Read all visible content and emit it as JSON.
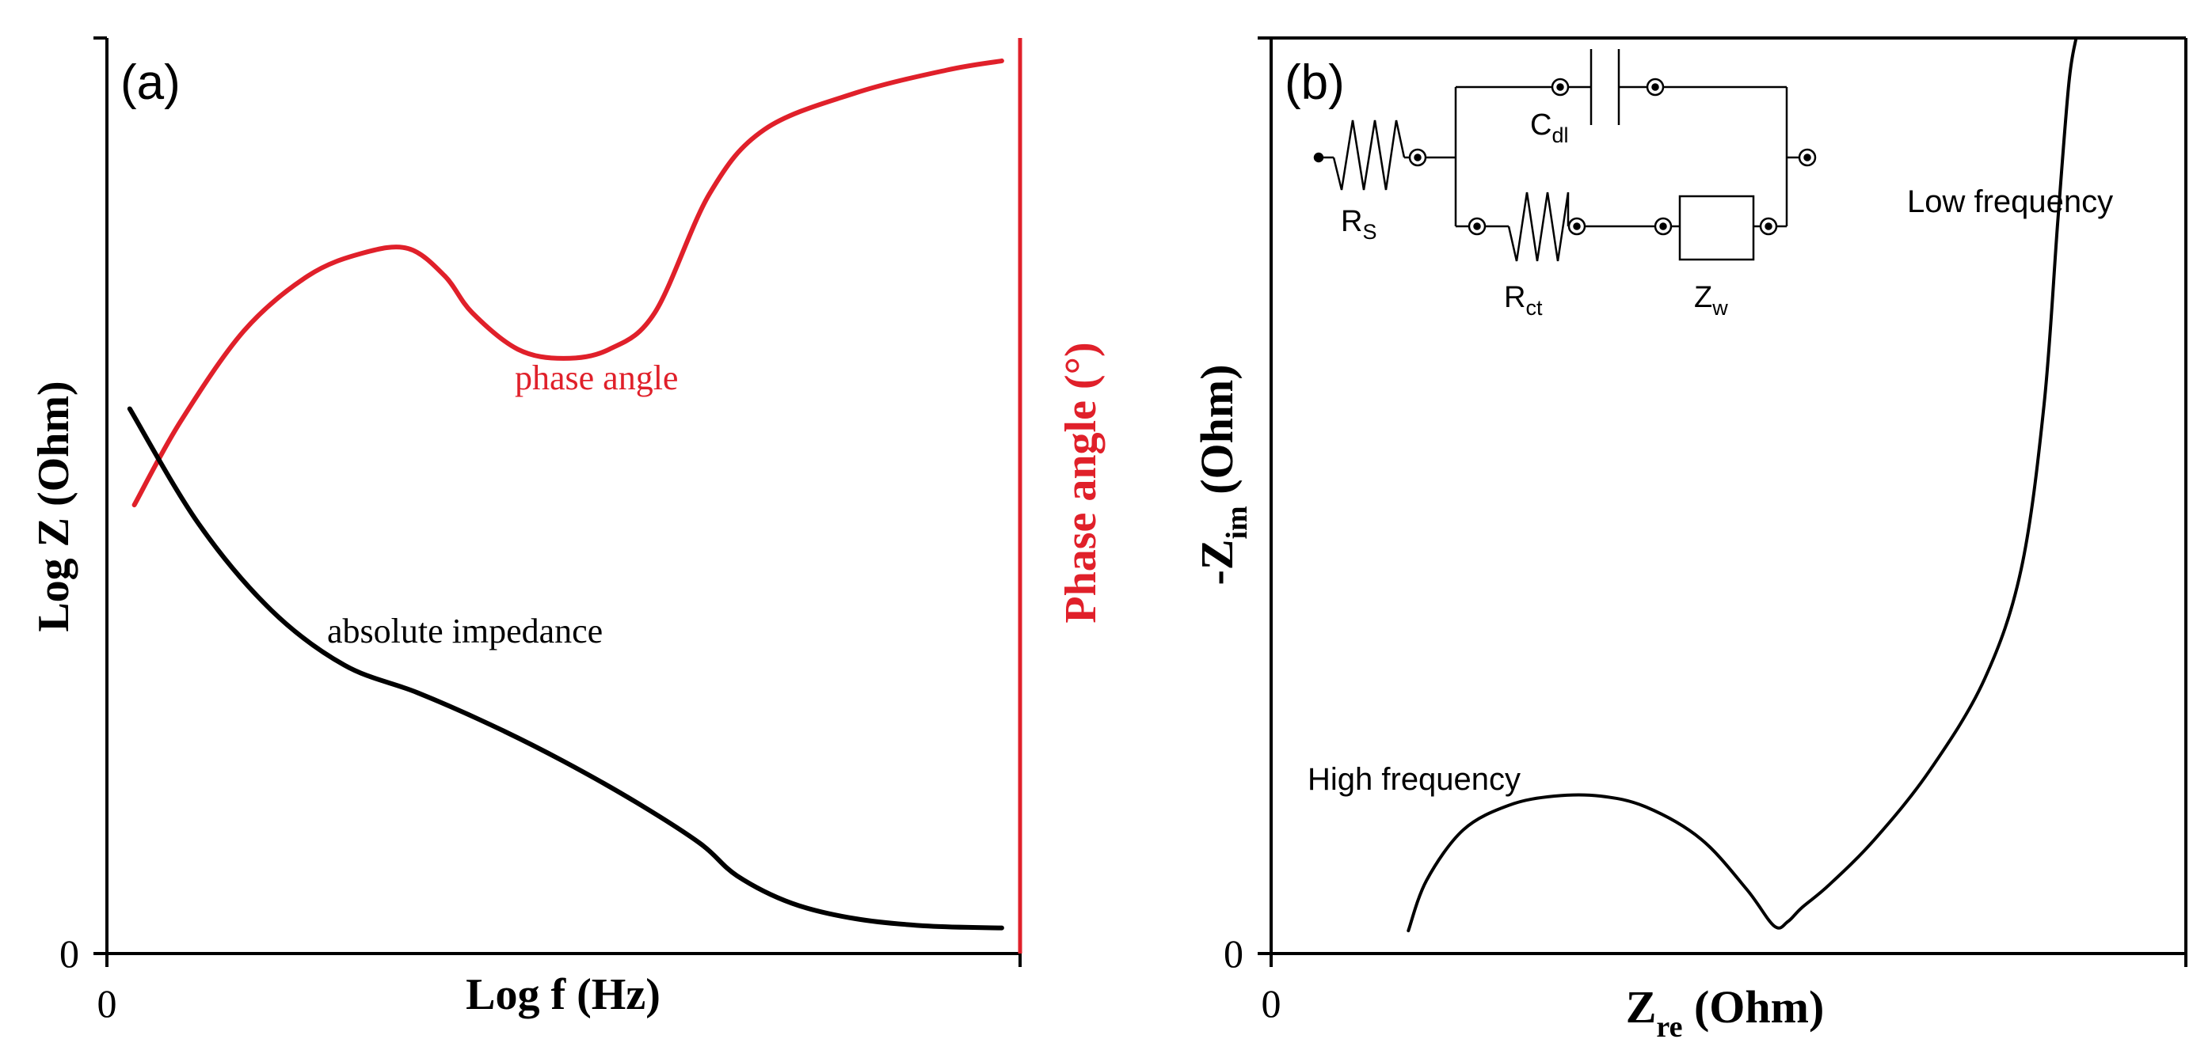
{
  "colors": {
    "axis": "#000000",
    "phase": "#e0202a",
    "impedance": "#000000",
    "background": "#ffffff"
  },
  "chart_data": [
    {
      "id": "bode",
      "panel_label": "(a)",
      "type": "line",
      "xlabel": "Log f (Hz)",
      "ylabel_left": "Log Z (Ohm)",
      "ylabel_right": "Phase angle (°)",
      "x_tick_label": "0",
      "y_tick_label": "0",
      "xlim": [
        0,
        100
      ],
      "ylim": [
        0,
        100
      ],
      "series": [
        {
          "name": "phase angle",
          "label": "phase angle",
          "x": [
            3,
            8,
            15,
            22,
            28,
            33,
            37,
            40,
            45,
            50,
            55,
            60,
            66,
            72,
            82,
            92,
            98
          ],
          "y": [
            49,
            58,
            68,
            74,
            76.5,
            77,
            74,
            70,
            66,
            65,
            66,
            70,
            83,
            90,
            94,
            96.5,
            97.5
          ]
        },
        {
          "name": "absolute impedance",
          "label": "absolute impedance",
          "x": [
            2.5,
            10,
            18,
            26,
            34,
            42,
            50,
            58,
            65,
            69,
            75,
            82,
            90,
            98
          ],
          "y": [
            59.5,
            47,
            37.5,
            31.5,
            28.5,
            25,
            21,
            16.5,
            12,
            8.5,
            5.5,
            3.8,
            3,
            2.8
          ]
        }
      ]
    },
    {
      "id": "nyquist",
      "panel_label": "(b)",
      "type": "line",
      "xlabel": "Z",
      "xlabel_sub": "re",
      "xlabel_unit": " (Ohm)",
      "ylabel": "-Z",
      "ylabel_sub": "im",
      "ylabel_unit": " (Ohm)",
      "x_tick_label": "0",
      "y_tick_label": "0",
      "xlim": [
        0,
        100
      ],
      "ylim": [
        0,
        100
      ],
      "annotations": {
        "high_frequency": "High frequency",
        "low_frequency": "Low frequency"
      },
      "series": [
        {
          "name": "nyquist",
          "x": [
            15,
            17,
            21,
            26,
            31,
            36,
            41,
            47,
            52,
            55,
            56.5,
            58,
            61,
            66,
            72,
            78,
            82,
            84.5,
            86,
            87.2,
            88
          ],
          "y": [
            2.5,
            8,
            13.5,
            16.2,
            17.2,
            17.2,
            16,
            12.5,
            7,
            3,
            3.5,
            5,
            7.5,
            12.5,
            20,
            30,
            42,
            60,
            80,
            95,
            100
          ]
        }
      ],
      "circuit": {
        "rs_main": "R",
        "rs_sub": "S",
        "cdl_main": "C",
        "cdl_sub": "dl",
        "rct_main": "R",
        "rct_sub": "ct",
        "zw_main": "Z",
        "zw_sub": "w"
      }
    }
  ]
}
